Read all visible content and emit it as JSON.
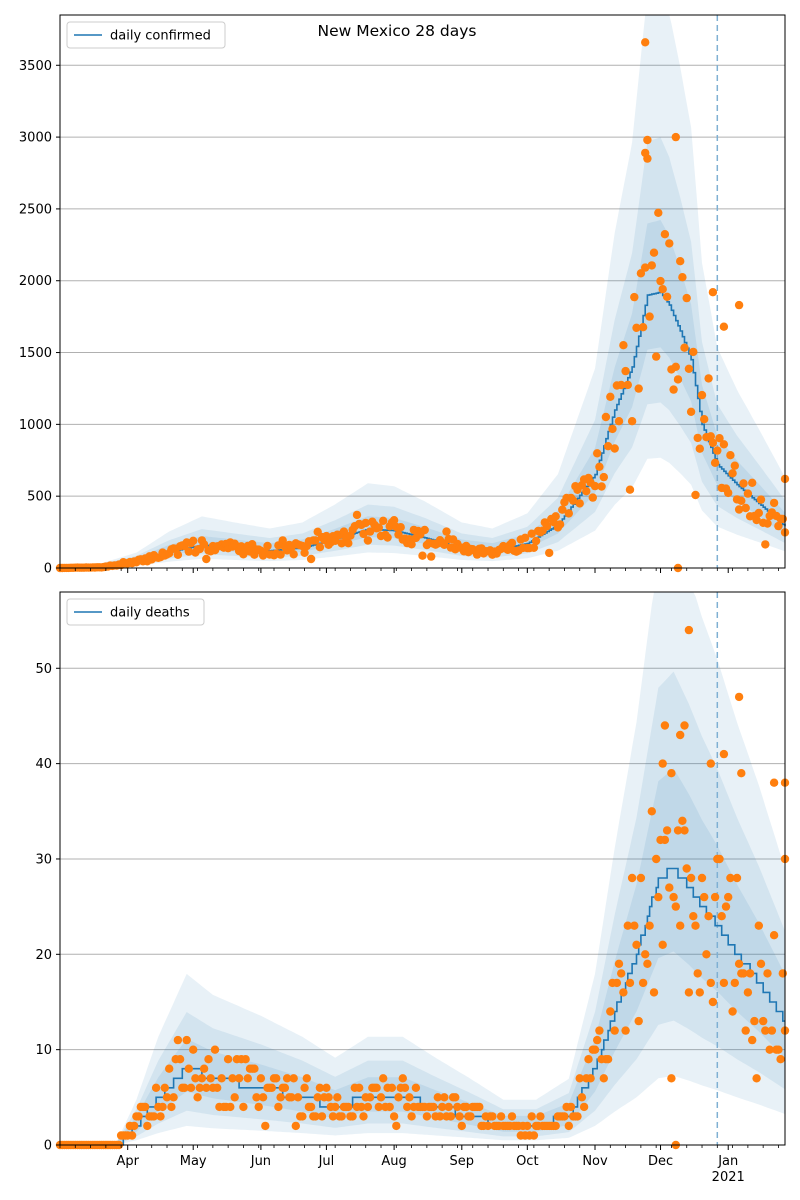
{
  "chart_data": {
    "title": "New Mexico 28 days",
    "x_date_range": [
      "2020-03-01",
      "2021-01-27"
    ],
    "forecast_date": "2020-12-27",
    "x_ticks": [
      {
        "date": "2020-04-01",
        "label": "Apr"
      },
      {
        "date": "2020-05-01",
        "label": "May"
      },
      {
        "date": "2020-06-01",
        "label": "Jun"
      },
      {
        "date": "2020-07-01",
        "label": "Jul"
      },
      {
        "date": "2020-08-01",
        "label": "Aug"
      },
      {
        "date": "2020-09-01",
        "label": "Sep"
      },
      {
        "date": "2020-10-01",
        "label": "Oct"
      },
      {
        "date": "2020-11-01",
        "label": "Nov"
      },
      {
        "date": "2020-12-01",
        "label": "Dec"
      },
      {
        "date": "2021-01-01",
        "label": "Jan"
      }
    ],
    "x_year_label": "2021",
    "colors": {
      "model": "#1f77b4",
      "observed": "#ff7f0e",
      "band": "#1f77b4",
      "forecast_line": "#7fb0d3",
      "grid": "#b0b0b0"
    },
    "panels": [
      {
        "name": "confirmed",
        "type": "line",
        "legend": "daily confirmed",
        "ylim": [
          0,
          3850
        ],
        "yticks": [
          0,
          500,
          1000,
          1500,
          2000,
          2500,
          3000,
          3500
        ],
        "model_knots": [
          [
            "2020-03-01",
            0
          ],
          [
            "2020-03-20",
            5
          ],
          [
            "2020-04-05",
            40
          ],
          [
            "2020-04-20",
            110
          ],
          [
            "2020-05-05",
            160
          ],
          [
            "2020-05-20",
            140
          ],
          [
            "2020-06-05",
            120
          ],
          [
            "2020-06-20",
            140
          ],
          [
            "2020-07-05",
            200
          ],
          [
            "2020-07-20",
            270
          ],
          [
            "2020-08-01",
            260
          ],
          [
            "2020-08-15",
            210
          ],
          [
            "2020-09-01",
            140
          ],
          [
            "2020-09-15",
            120
          ],
          [
            "2020-10-01",
            170
          ],
          [
            "2020-10-15",
            300
          ],
          [
            "2020-11-01",
            650
          ],
          [
            "2020-11-10",
            1100
          ],
          [
            "2020-11-18",
            1400
          ],
          [
            "2020-11-25",
            1900
          ],
          [
            "2020-12-01",
            1920
          ],
          [
            "2020-12-05",
            1830
          ],
          [
            "2020-12-10",
            1650
          ],
          [
            "2020-12-15",
            1450
          ],
          [
            "2020-12-20",
            1000
          ],
          [
            "2020-12-27",
            720
          ],
          [
            "2021-01-05",
            580
          ],
          [
            "2021-01-15",
            450
          ],
          [
            "2021-01-27",
            290
          ]
        ],
        "band_scales": [
          [
            0.8,
            1.25
          ],
          [
            0.6,
            1.55
          ],
          [
            0.4,
            2.1
          ]
        ],
        "observed": {
          "base_scale": 1.0,
          "noise": 0.3,
          "seed": 7,
          "outliers": [
            [
              "2020-11-24",
              3660
            ],
            [
              "2020-11-25",
              2980
            ],
            [
              "2020-11-24",
              2890
            ],
            [
              "2020-12-08",
              3000
            ],
            [
              "2020-12-09",
              0
            ],
            [
              "2020-12-25",
              1920
            ],
            [
              "2020-12-30",
              1680
            ],
            [
              "2021-01-06",
              1830
            ],
            [
              "2021-01-27",
              620
            ]
          ]
        }
      },
      {
        "name": "deaths",
        "type": "line",
        "legend": "daily deaths",
        "ylim": [
          0,
          58
        ],
        "yticks": [
          0,
          10,
          20,
          30,
          40,
          50
        ],
        "model_knots": [
          [
            "2020-03-01",
            0
          ],
          [
            "2020-03-27",
            0
          ],
          [
            "2020-04-05",
            2
          ],
          [
            "2020-04-15",
            5
          ],
          [
            "2020-04-28",
            8
          ],
          [
            "2020-05-10",
            7
          ],
          [
            "2020-06-01",
            6
          ],
          [
            "2020-06-20",
            5
          ],
          [
            "2020-07-05",
            4
          ],
          [
            "2020-07-20",
            5
          ],
          [
            "2020-08-05",
            5
          ],
          [
            "2020-08-20",
            4
          ],
          [
            "2020-09-05",
            3
          ],
          [
            "2020-09-20",
            2
          ],
          [
            "2020-10-05",
            2
          ],
          [
            "2020-10-20",
            3
          ],
          [
            "2020-11-01",
            8
          ],
          [
            "2020-11-10",
            14
          ],
          [
            "2020-11-20",
            20
          ],
          [
            "2020-11-30",
            28
          ],
          [
            "2020-12-07",
            29
          ],
          [
            "2020-12-14",
            27
          ],
          [
            "2020-12-20",
            25
          ],
          [
            "2020-12-27",
            23
          ],
          [
            "2021-01-05",
            20
          ],
          [
            "2021-01-15",
            17
          ],
          [
            "2021-01-27",
            13
          ]
        ],
        "band_scales": [
          [
            0.7,
            1.35
          ],
          [
            0.45,
            1.7
          ],
          [
            0.25,
            2.2
          ]
        ],
        "observed": {
          "base_scale": 1.0,
          "noise": 0.4,
          "seed": 13,
          "outliers": [
            [
              "2020-12-14",
              54
            ],
            [
              "2021-01-06",
              47
            ],
            [
              "2020-12-30",
              41
            ],
            [
              "2020-12-03",
              44
            ],
            [
              "2020-12-12",
              44
            ],
            [
              "2020-12-10",
              43
            ],
            [
              "2020-12-24",
              40
            ],
            [
              "2021-01-27",
              38
            ],
            [
              "2021-01-22",
              38
            ],
            [
              "2021-01-07",
              39
            ],
            [
              "2020-12-02",
              40
            ],
            [
              "2020-12-06",
              7
            ],
            [
              "2020-12-08",
              0
            ],
            [
              "2021-01-27",
              30
            ]
          ]
        }
      }
    ]
  }
}
